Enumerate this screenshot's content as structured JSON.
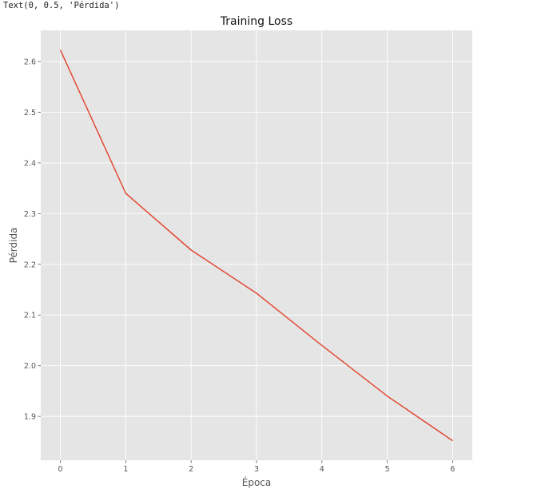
{
  "console_output": "Text(0, 0.5, 'Pérdida')",
  "chart_data": {
    "type": "line",
    "title": "Training Loss",
    "xlabel": "Época",
    "ylabel": "Pérdida",
    "x": [
      0,
      1,
      2,
      3,
      4,
      5,
      6
    ],
    "series": [
      {
        "values": [
          2.623,
          2.34,
          2.228,
          2.143,
          2.04,
          1.94,
          1.852
        ],
        "color": "#e24a33"
      }
    ],
    "xticks": [
      0,
      1,
      2,
      3,
      4,
      5,
      6
    ],
    "yticks": [
      1.9,
      2.0,
      2.1,
      2.2,
      2.3,
      2.4,
      2.5,
      2.6
    ],
    "xlim": [
      -0.3,
      6.3
    ],
    "ylim": [
      1.8135,
      2.6615
    ],
    "grid": true,
    "style": "ggplot",
    "background": "#e5e5e5"
  }
}
